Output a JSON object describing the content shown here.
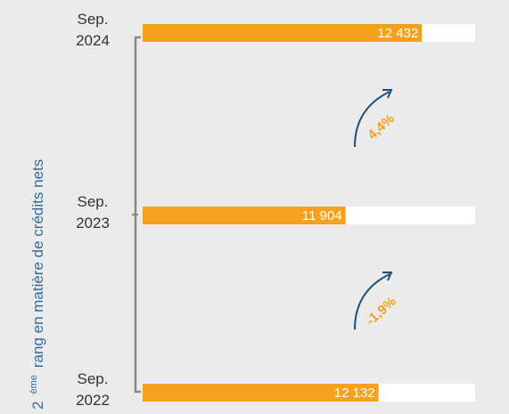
{
  "chart_data": {
    "type": "bar",
    "orientation": "horizontal",
    "ylabel": {
      "rank": "2",
      "suffix": "ème",
      "text": "rang en matière de crédits nets"
    },
    "categories": [
      "Sep. 2024",
      "Sep. 2023",
      "Sep. 2022"
    ],
    "values": [
      12432,
      11904,
      12132
    ],
    "value_labels": [
      "12 432",
      "11 904",
      "12 132"
    ],
    "color": "#f5a01f",
    "xlim": [
      10500,
      12800
    ],
    "annotations": [
      "4,4%",
      "-1,9%"
    ]
  }
}
